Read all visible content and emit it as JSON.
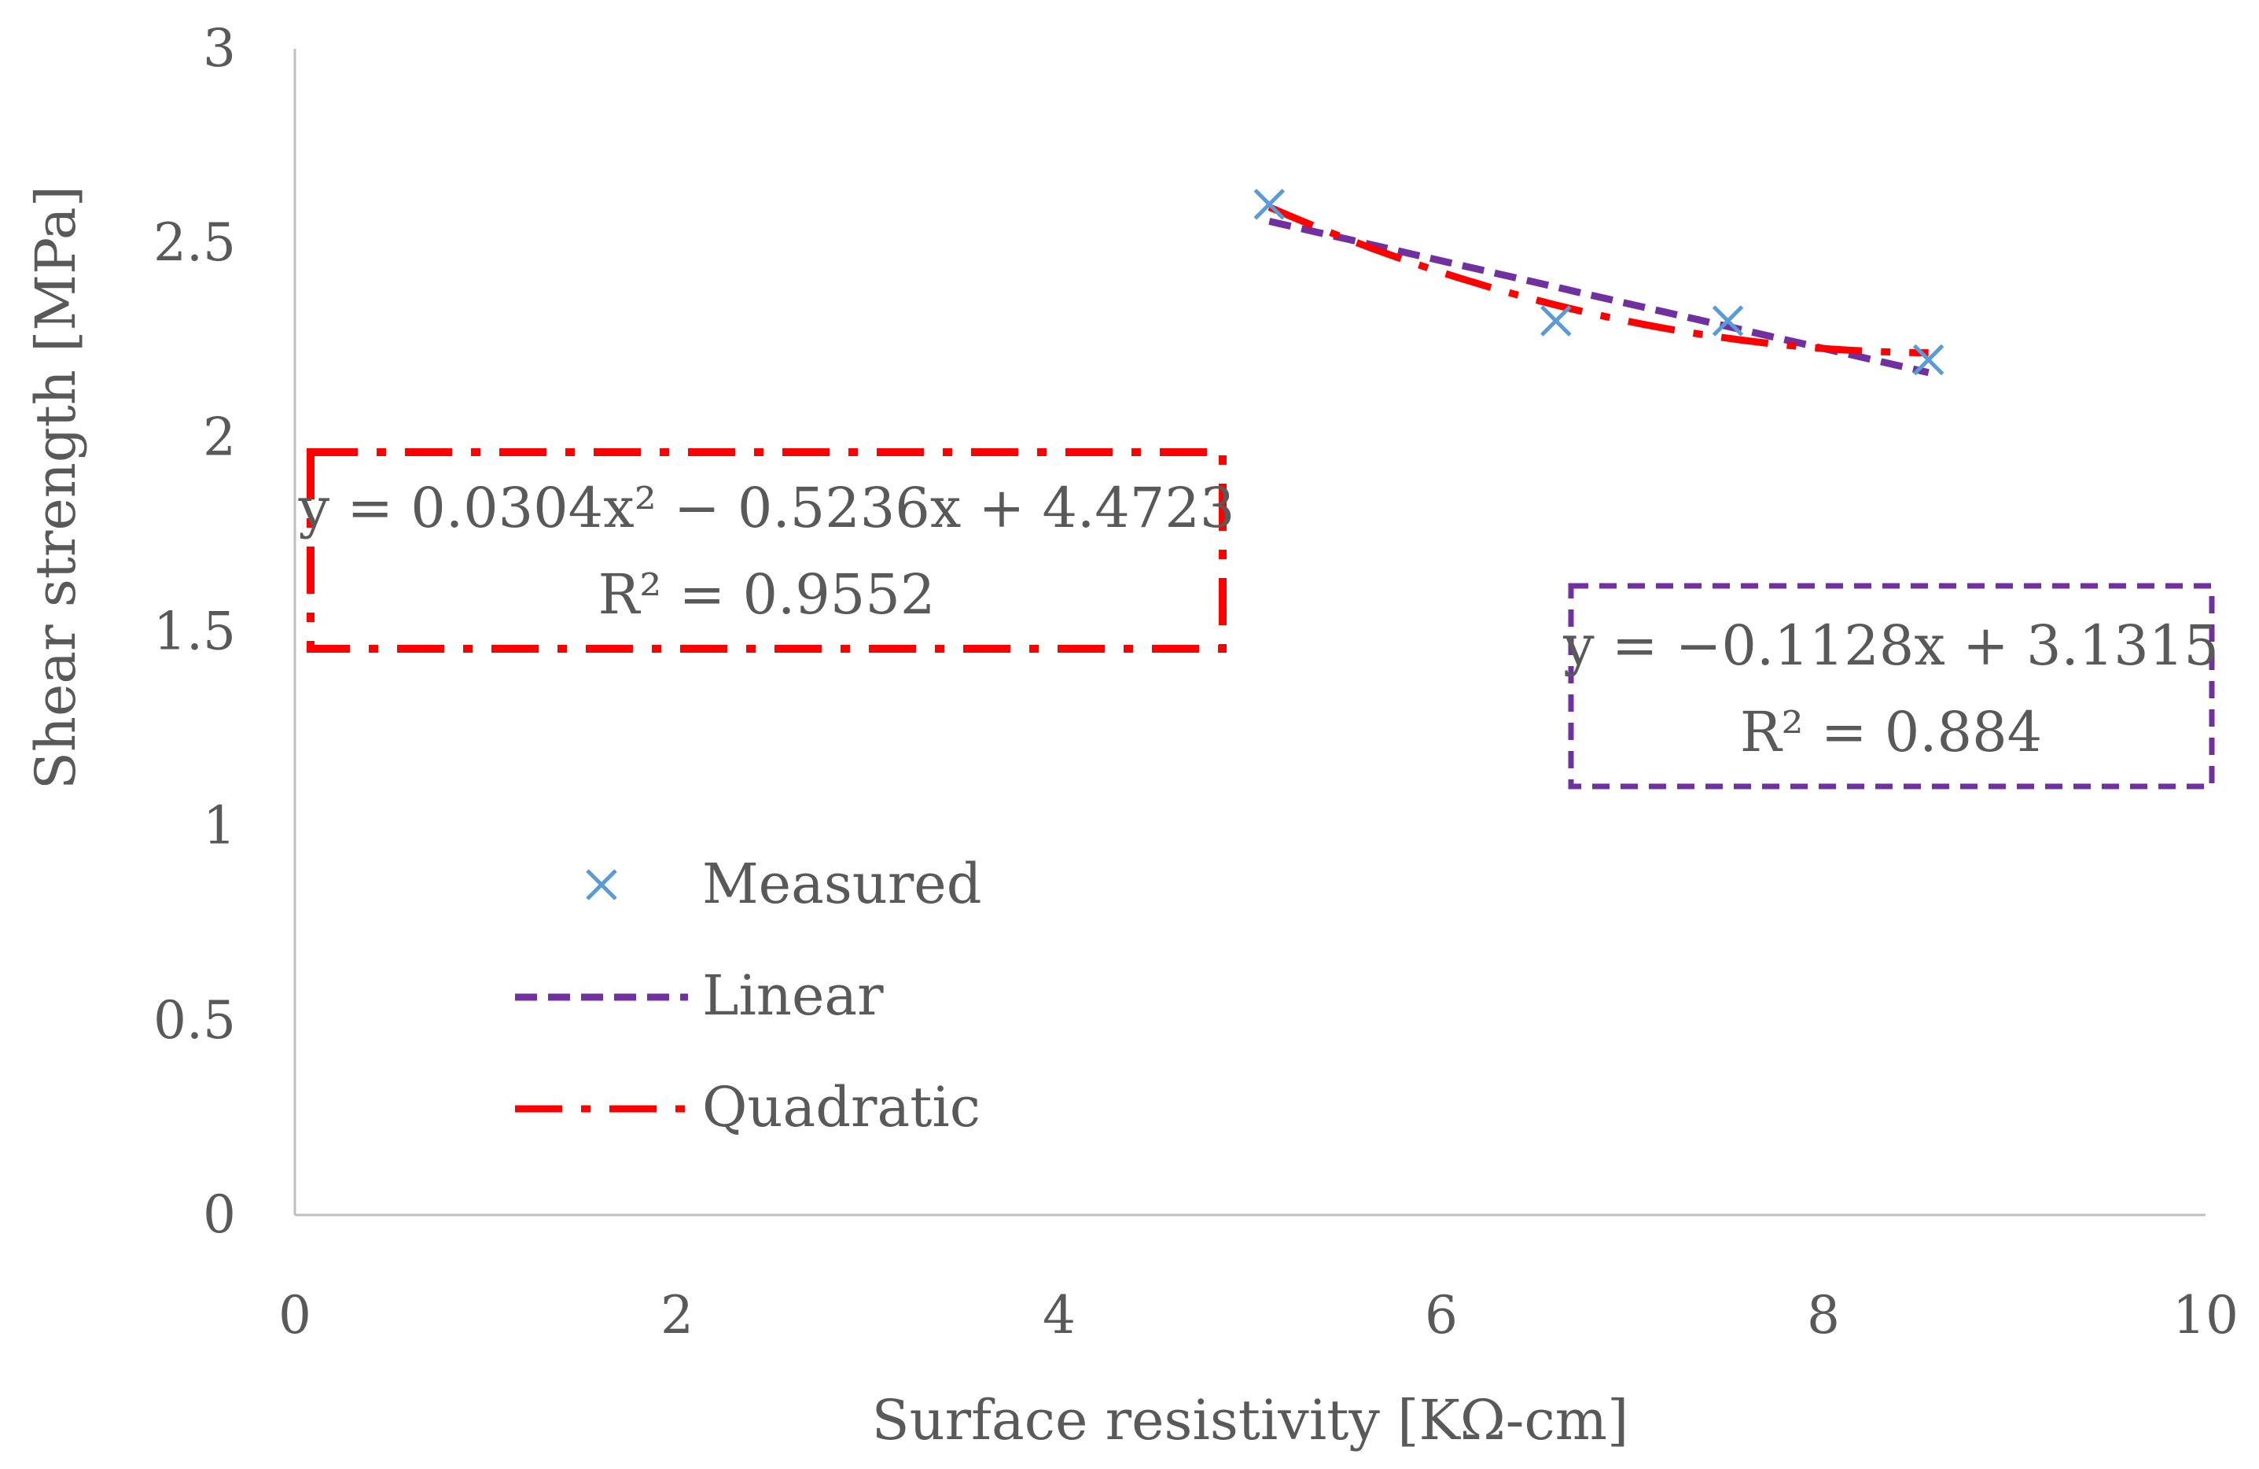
{
  "chart_data": {
    "type": "scatter",
    "xlabel": "Surface resistivity [KΩ-cm]",
    "ylabel": "Shear strength [MPa]",
    "xlim": [
      0,
      10
    ],
    "ylim": [
      0,
      3
    ],
    "x_ticks": [
      "0",
      "2",
      "4",
      "6",
      "8",
      "10"
    ],
    "y_ticks": [
      "0",
      "0.5",
      "1",
      "1.5",
      "2",
      "2.5",
      "3"
    ],
    "grid": false,
    "series": [
      {
        "name": "Measured",
        "kind": "markers",
        "marker": "x",
        "color": "#5b9bd5",
        "x": [
          5.1,
          6.6,
          7.5,
          8.55
        ],
        "y": [
          2.6,
          2.3,
          2.3,
          2.2
        ]
      },
      {
        "name": "Linear",
        "kind": "trendline",
        "color": "#7030a0",
        "dash": "dashed",
        "equation": "y = −0.1128x + 3.1315",
        "r2": "R² = 0.884",
        "coefficients": [
          3.1315,
          -0.1128
        ],
        "x_range": [
          5.1,
          8.55
        ]
      },
      {
        "name": "Quadratic",
        "kind": "trendline",
        "color": "#ff0000",
        "dash": "dash-dot",
        "equation": "y = 0.0304x² − 0.5236x + 4.4723",
        "r2": "R² = 0.9552",
        "coefficients": [
          4.4723,
          -0.5236,
          0.0304
        ],
        "x_range": [
          5.1,
          8.55
        ]
      }
    ],
    "legend_position": "lower-left",
    "annotations": [
      {
        "series": "Quadratic",
        "box_style": "dash-dot",
        "box_color": "#ff0000",
        "placement": "left-middle"
      },
      {
        "series": "Linear",
        "box_style": "dashed",
        "box_color": "#7030a0",
        "placement": "right-middle"
      }
    ]
  }
}
